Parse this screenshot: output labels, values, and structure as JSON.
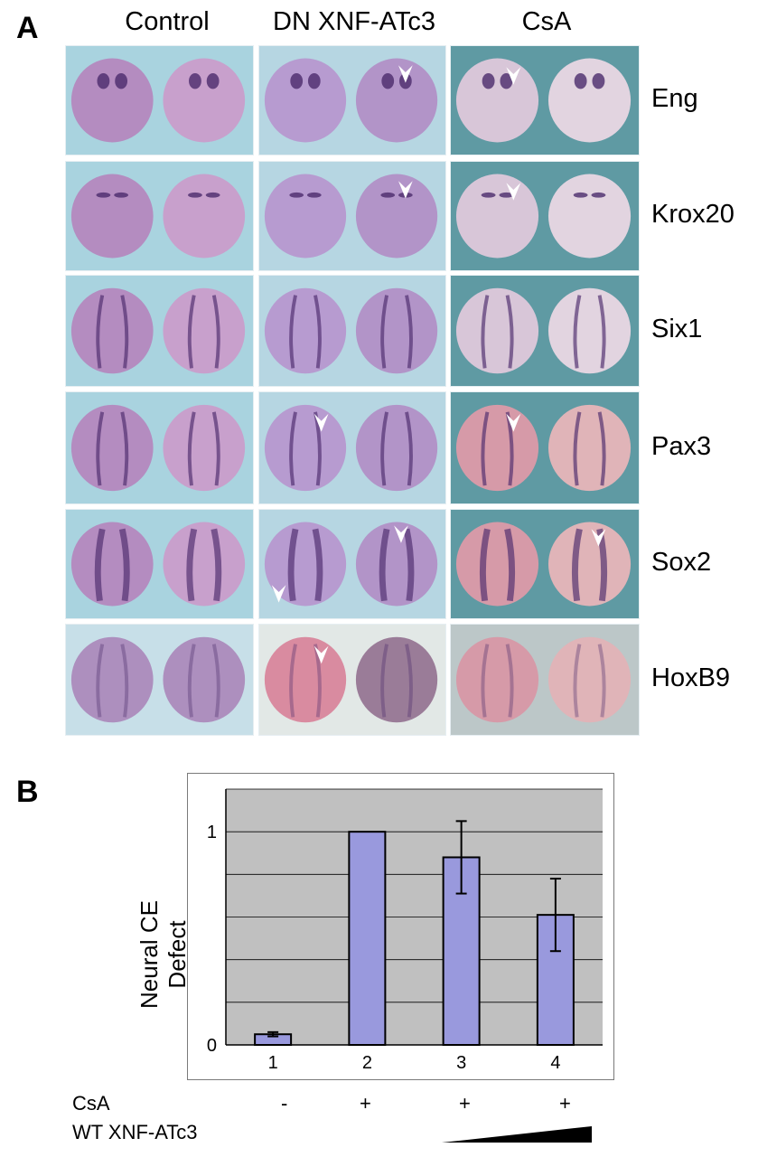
{
  "panel_a": {
    "letter": "A",
    "columns": [
      "Control",
      "DN XNF-ATc3",
      "CsA"
    ],
    "rows": [
      {
        "gene": "Eng",
        "arrows": [
          "",
          "right",
          "left"
        ]
      },
      {
        "gene": "Krox20",
        "arrows": [
          "",
          "right",
          "left"
        ]
      },
      {
        "gene": "Six1",
        "arrows": [
          "",
          "",
          ""
        ]
      },
      {
        "gene": "Pax3",
        "arrows": [
          "",
          "left",
          "left"
        ]
      },
      {
        "gene": "Sox2",
        "arrows": [
          "",
          "both",
          "right"
        ]
      },
      {
        "gene": "HoxB9",
        "arrows": [
          "",
          "left",
          ""
        ]
      }
    ],
    "colors": {
      "control_bg": "#a9d3df",
      "dn_bg": "#b6d6e2",
      "csa_bg": "#5f9aa3",
      "embryo_purple": "#a58ac0",
      "stain": "#4b2a6b"
    }
  },
  "panel_b": {
    "letter": "B",
    "row_labels": {
      "csa": "CsA",
      "wt": "WT XNF-ATc3"
    },
    "csa_values": [
      "-",
      "+",
      "+",
      "+"
    ],
    "colors": {
      "bar": "#9999dd",
      "plot_bg": "#c0c0c0",
      "grid": "#000000"
    }
  },
  "chart_data": {
    "type": "bar",
    "categories": [
      "1",
      "2",
      "3",
      "4"
    ],
    "values": [
      0.05,
      1.0,
      0.88,
      0.61
    ],
    "error": [
      0.01,
      0.0,
      0.17,
      0.17
    ],
    "ylabel": "Neural CE Defect",
    "xlabel": "",
    "yticks": [
      "0",
      "1"
    ],
    "ylim": [
      0,
      1.2
    ],
    "grid": true
  }
}
